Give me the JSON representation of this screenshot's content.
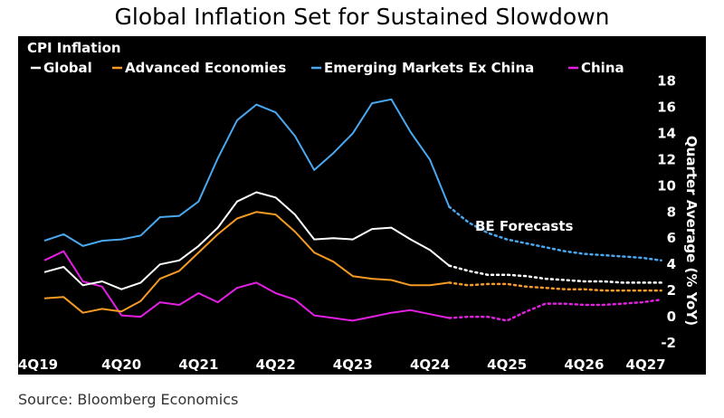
{
  "title": "Global Inflation Set for Sustained Slowdown",
  "source": "Source: Bloomberg Economics",
  "chart_data": {
    "type": "line",
    "subtitle": "CPI Inflation",
    "ylabel": "Quarter Average (% YoY)",
    "ylim": [
      -2,
      18
    ],
    "yticks": [
      -2,
      0,
      2,
      4,
      6,
      8,
      10,
      12,
      14,
      16,
      18
    ],
    "x_tick_labels": [
      "4Q19",
      "4Q20",
      "4Q21",
      "4Q22",
      "4Q23",
      "4Q24",
      "4Q25",
      "4Q26",
      "4Q27"
    ],
    "x_tick_index": [
      0,
      4,
      8,
      12,
      16,
      20,
      24,
      28,
      32
    ],
    "x": [
      "4Q19",
      "1Q20",
      "2Q20",
      "3Q20",
      "4Q20",
      "1Q21",
      "2Q21",
      "3Q21",
      "4Q21",
      "1Q22",
      "2Q22",
      "3Q22",
      "4Q22",
      "1Q23",
      "2Q23",
      "3Q23",
      "4Q23",
      "1Q24",
      "2Q24",
      "3Q24",
      "4Q24",
      "1Q25",
      "2Q25",
      "3Q25",
      "4Q25",
      "1Q26",
      "2Q26",
      "3Q26",
      "4Q26",
      "1Q27",
      "2Q27",
      "3Q27",
      "4Q27"
    ],
    "forecast_start_index": 21,
    "annotation": "BE Forecasts",
    "series": [
      {
        "name": "Global",
        "color": "#ffffff",
        "values": [
          3.4,
          3.8,
          2.4,
          2.7,
          2.1,
          2.6,
          4.0,
          4.3,
          5.4,
          6.8,
          8.8,
          9.5,
          9.1,
          7.8,
          5.9,
          6.0,
          5.9,
          6.7,
          6.8,
          5.9,
          5.1,
          3.9,
          3.5,
          3.2,
          3.2,
          3.1,
          2.9,
          2.8,
          2.7,
          2.7,
          2.6,
          2.6,
          2.6
        ]
      },
      {
        "name": "Advanced Economies",
        "color": "#f59a23",
        "values": [
          1.4,
          1.5,
          0.3,
          0.6,
          0.4,
          1.2,
          2.9,
          3.5,
          4.9,
          6.3,
          7.5,
          8.0,
          7.8,
          6.5,
          4.9,
          4.2,
          3.1,
          2.9,
          2.8,
          2.4,
          2.4,
          2.6,
          2.4,
          2.5,
          2.5,
          2.3,
          2.2,
          2.1,
          2.1,
          2.0,
          2.0,
          2.0,
          2.0
        ]
      },
      {
        "name": "Emerging Markets Ex China",
        "color": "#4aa8f0",
        "values": [
          5.8,
          6.3,
          5.4,
          5.8,
          5.9,
          6.2,
          7.6,
          7.7,
          8.8,
          12.1,
          15.0,
          16.2,
          15.6,
          13.8,
          11.2,
          12.5,
          14.0,
          16.3,
          16.6,
          14.1,
          12.0,
          8.4,
          7.2,
          6.4,
          5.9,
          5.6,
          5.3,
          5.0,
          4.8,
          4.7,
          4.6,
          4.5,
          4.3
        ]
      },
      {
        "name": "China",
        "color": "#e41fe4",
        "values": [
          4.3,
          5.0,
          2.7,
          2.3,
          0.1,
          0.0,
          1.1,
          0.9,
          1.8,
          1.1,
          2.2,
          2.6,
          1.8,
          1.3,
          0.1,
          -0.1,
          -0.3,
          0.0,
          0.3,
          0.5,
          0.2,
          -0.1,
          0.0,
          0.0,
          -0.3,
          0.4,
          1.0,
          1.0,
          0.9,
          0.9,
          1.0,
          1.1,
          1.3
        ]
      }
    ]
  }
}
